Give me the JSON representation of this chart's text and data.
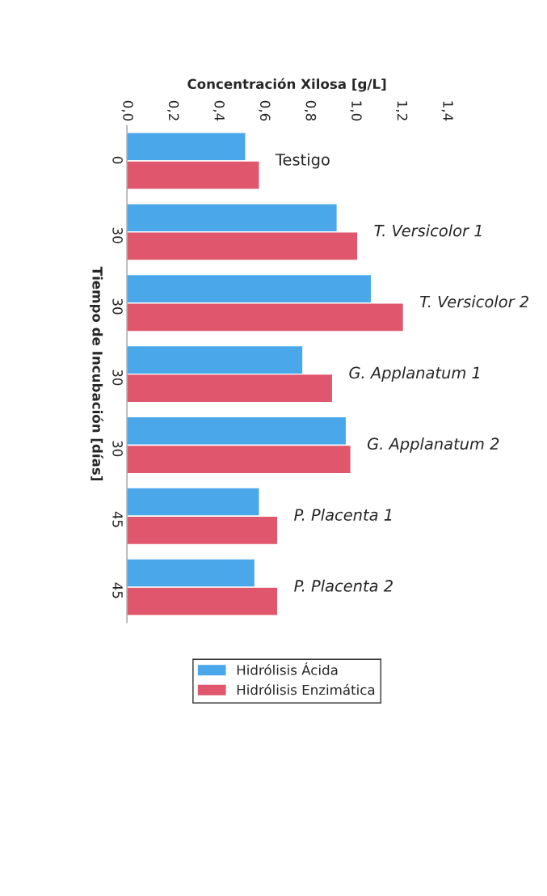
{
  "chart_data": {
    "type": "bar",
    "orientation": "horizontal",
    "xlabel": "Concentración Xilosa [g/L]",
    "ylabel": "Tiempo de Incubación [días]",
    "categories": [
      "0",
      "30",
      "30",
      "30",
      "30",
      "45",
      "45"
    ],
    "series": [
      {
        "name": "Hidrólisis Ácida",
        "color": "#4aa8ea",
        "values": [
          0.52,
          0.92,
          1.07,
          0.77,
          0.96,
          0.58,
          0.56
        ]
      },
      {
        "name": "Hidrólisis Enzimática",
        "color": "#e0566c",
        "values": [
          0.58,
          1.01,
          1.21,
          0.9,
          0.98,
          0.66,
          0.66
        ]
      }
    ],
    "annotations": [
      "Testigo",
      "T. Versicolor 1",
      "T. Versicolor 2",
      "G. Applanatum 1",
      "G. Applanatum 2",
      "P. Placenta 1",
      "P. Placenta 2"
    ],
    "xlim": [
      0,
      1.4
    ],
    "xticks": [
      {
        "value": 0,
        "label": "0,0"
      },
      {
        "value": 0.2,
        "label": "0,2"
      },
      {
        "value": 0.4,
        "label": "0,4"
      },
      {
        "value": 0.6,
        "label": "0,6"
      },
      {
        "value": 0.8,
        "label": "0,8"
      },
      {
        "value": 1.0,
        "label": "1,0"
      },
      {
        "value": 1.2,
        "label": "1,2"
      },
      {
        "value": 1.4,
        "label": "1,4"
      }
    ],
    "grid": false,
    "legend": "bottom"
  }
}
